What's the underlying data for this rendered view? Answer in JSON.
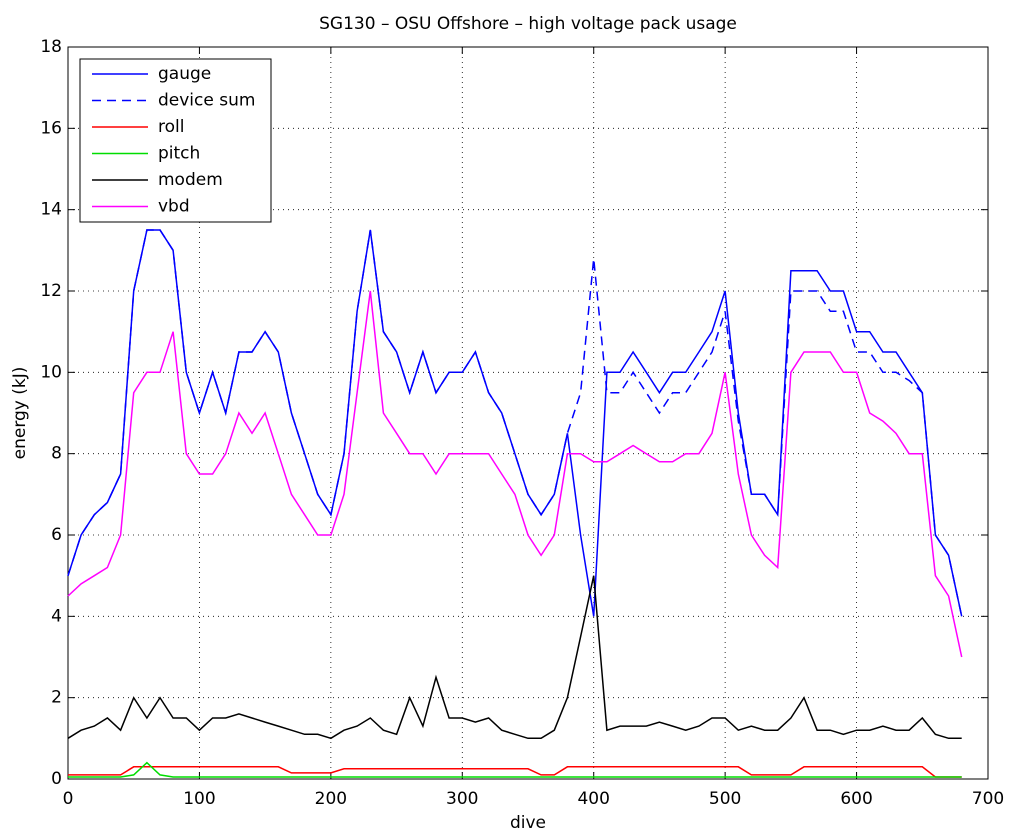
{
  "chart_data": {
    "type": "line",
    "title": "SG130 – OSU Offshore – high voltage pack usage",
    "xlabel": "dive",
    "ylabel": "energy (kJ)",
    "xlim": [
      0,
      700
    ],
    "xticks": [
      0,
      100,
      200,
      300,
      400,
      500,
      600,
      700
    ],
    "ylim": [
      0,
      18
    ],
    "yticks": [
      0,
      2,
      4,
      6,
      8,
      10,
      12,
      14,
      16,
      18
    ],
    "grid": true,
    "legend": "upper left",
    "x": [
      0,
      10,
      20,
      30,
      40,
      50,
      60,
      70,
      80,
      90,
      100,
      110,
      120,
      130,
      140,
      150,
      160,
      170,
      180,
      190,
      200,
      210,
      220,
      230,
      240,
      250,
      260,
      270,
      280,
      290,
      300,
      310,
      320,
      330,
      340,
      350,
      360,
      370,
      380,
      390,
      400,
      410,
      420,
      430,
      440,
      450,
      460,
      470,
      480,
      490,
      500,
      510,
      520,
      530,
      540,
      550,
      560,
      570,
      580,
      590,
      600,
      610,
      620,
      630,
      640,
      650,
      660,
      670,
      680
    ],
    "series": [
      {
        "name": "gauge",
        "color": "#0000ff",
        "linestyle": "solid",
        "values": [
          5,
          6,
          6.5,
          6.8,
          7.5,
          12,
          13.5,
          13.5,
          13,
          10,
          9,
          10,
          9,
          10.5,
          10.5,
          11,
          10.5,
          9,
          8,
          7,
          6.5,
          8,
          11.5,
          13.5,
          11,
          10.5,
          9.5,
          10.5,
          9.5,
          10,
          10,
          10.5,
          9.5,
          9,
          8,
          7,
          6.5,
          7,
          8.5,
          6,
          4,
          10,
          10,
          10.5,
          10,
          9.5,
          10,
          10,
          10.5,
          11,
          12,
          9,
          7,
          7,
          6.5,
          12.5,
          12.5,
          12.5,
          12,
          12,
          11,
          11,
          10.5,
          10.5,
          10,
          9.5,
          6,
          5.5,
          4
        ]
      },
      {
        "name": "device sum",
        "color": "#0000ff",
        "linestyle": "dashed",
        "values": [
          5,
          6,
          6.5,
          6.8,
          7.5,
          12,
          13.5,
          13.5,
          13,
          10,
          9,
          10,
          9,
          10.5,
          10.5,
          11,
          10.5,
          9,
          8,
          7,
          6.5,
          8,
          11.5,
          13.5,
          11,
          10.5,
          9.5,
          10.5,
          9.5,
          10,
          10,
          10.5,
          9.5,
          9,
          8,
          7,
          6.5,
          7,
          8.5,
          9.5,
          12.8,
          9.5,
          9.5,
          10,
          9.5,
          9,
          9.5,
          9.5,
          10,
          10.5,
          11.5,
          8.8,
          7,
          7,
          6.5,
          12,
          12,
          12,
          11.5,
          11.5,
          10.5,
          10.5,
          10,
          10,
          9.8,
          9.5,
          6,
          5.5,
          4
        ]
      },
      {
        "name": "roll",
        "color": "#ff0000",
        "linestyle": "solid",
        "values": [
          0.1,
          0.1,
          0.1,
          0.1,
          0.1,
          0.3,
          0.3,
          0.3,
          0.3,
          0.3,
          0.3,
          0.3,
          0.3,
          0.3,
          0.3,
          0.3,
          0.3,
          0.15,
          0.15,
          0.15,
          0.15,
          0.25,
          0.25,
          0.25,
          0.25,
          0.25,
          0.25,
          0.25,
          0.25,
          0.25,
          0.25,
          0.25,
          0.25,
          0.25,
          0.25,
          0.25,
          0.1,
          0.1,
          0.3,
          0.3,
          0.3,
          0.3,
          0.3,
          0.3,
          0.3,
          0.3,
          0.3,
          0.3,
          0.3,
          0.3,
          0.3,
          0.3,
          0.1,
          0.1,
          0.1,
          0.1,
          0.3,
          0.3,
          0.3,
          0.3,
          0.3,
          0.3,
          0.3,
          0.3,
          0.3,
          0.3,
          0.05,
          0.05,
          0.05
        ]
      },
      {
        "name": "pitch",
        "color": "#00dd00",
        "linestyle": "solid",
        "values": [
          0.05,
          0.05,
          0.05,
          0.05,
          0.05,
          0.1,
          0.4,
          0.1,
          0.05,
          0.05,
          0.05,
          0.05,
          0.05,
          0.05,
          0.05,
          0.05,
          0.05,
          0.05,
          0.05,
          0.05,
          0.05,
          0.05,
          0.05,
          0.05,
          0.05,
          0.05,
          0.05,
          0.05,
          0.05,
          0.05,
          0.05,
          0.05,
          0.05,
          0.05,
          0.05,
          0.05,
          0.05,
          0.05,
          0.05,
          0.05,
          0.05,
          0.05,
          0.05,
          0.05,
          0.05,
          0.05,
          0.05,
          0.05,
          0.05,
          0.05,
          0.05,
          0.05,
          0.05,
          0.05,
          0.05,
          0.05,
          0.05,
          0.05,
          0.05,
          0.05,
          0.05,
          0.05,
          0.05,
          0.05,
          0.05,
          0.05,
          0.05,
          0.05,
          0.05
        ]
      },
      {
        "name": "modem",
        "color": "#000000",
        "linestyle": "solid",
        "values": [
          1,
          1.2,
          1.3,
          1.5,
          1.2,
          2,
          1.5,
          2,
          1.5,
          1.5,
          1.2,
          1.5,
          1.5,
          1.6,
          1.5,
          1.4,
          1.3,
          1.2,
          1.1,
          1.1,
          1,
          1.2,
          1.3,
          1.5,
          1.2,
          1.1,
          2,
          1.3,
          2.5,
          1.5,
          1.5,
          1.4,
          1.5,
          1.2,
          1.1,
          1,
          1,
          1.2,
          2,
          3.5,
          5,
          1.2,
          1.3,
          1.3,
          1.3,
          1.4,
          1.3,
          1.2,
          1.3,
          1.5,
          1.5,
          1.2,
          1.3,
          1.2,
          1.2,
          1.5,
          2,
          1.2,
          1.2,
          1.1,
          1.2,
          1.2,
          1.3,
          1.2,
          1.2,
          1.5,
          1.1,
          1,
          1
        ]
      },
      {
        "name": "vbd",
        "color": "#ff00ff",
        "linestyle": "solid",
        "values": [
          4.5,
          4.8,
          5,
          5.2,
          6,
          9.5,
          10,
          10,
          11,
          8,
          7.5,
          7.5,
          8,
          9,
          8.5,
          9,
          8,
          7,
          6.5,
          6,
          6,
          7,
          9.5,
          12,
          9,
          8.5,
          8,
          8,
          7.5,
          8,
          8,
          8,
          8,
          7.5,
          7,
          6,
          5.5,
          6,
          8,
          8,
          7.8,
          7.8,
          8,
          8.2,
          8,
          7.8,
          7.8,
          8,
          8,
          8.5,
          10,
          7.5,
          6,
          5.5,
          5.2,
          10,
          10.5,
          10.5,
          10.5,
          10,
          10,
          9,
          8.8,
          8.5,
          8,
          8,
          5,
          4.5,
          3
        ]
      }
    ]
  }
}
